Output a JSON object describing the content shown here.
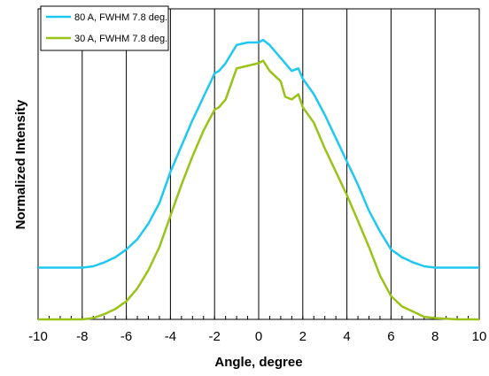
{
  "chart_data": {
    "type": "line",
    "title": "",
    "xlabel": "Angle, degree",
    "ylabel": "Normalized Intensity",
    "xlim": [
      -10,
      10
    ],
    "x_ticks": [
      "-10",
      "-8",
      "-6",
      "-4",
      "-2",
      "0",
      "2",
      "4",
      "6",
      "8",
      "10"
    ],
    "grid": "vertical",
    "legend_position": "top-left",
    "series": [
      {
        "name": "80 A, FWHM 7.8 deg.",
        "color": "#1ec8f0",
        "x": [
          -10,
          -8,
          -7.5,
          -7,
          -6.5,
          -6,
          -5.5,
          -5,
          -4.5,
          -4,
          -3.5,
          -3,
          -2.5,
          -2,
          -1.8,
          -1.5,
          -1,
          -0.5,
          0,
          0.2,
          0.5,
          1,
          1.5,
          1.8,
          2,
          2.5,
          3,
          3.5,
          4,
          4.5,
          5,
          5.5,
          6,
          6.5,
          7,
          7.5,
          8,
          9,
          10
        ],
        "y": [
          0.2,
          0.2,
          0.205,
          0.22,
          0.24,
          0.27,
          0.31,
          0.37,
          0.45,
          0.57,
          0.67,
          0.77,
          0.86,
          0.95,
          0.96,
          0.99,
          1.06,
          1.07,
          1.07,
          1.08,
          1.06,
          1.01,
          0.96,
          0.97,
          0.93,
          0.87,
          0.79,
          0.7,
          0.61,
          0.52,
          0.42,
          0.34,
          0.27,
          0.24,
          0.22,
          0.205,
          0.2,
          0.2,
          0.2
        ]
      },
      {
        "name": "30 A, FWHM 7.8 deg.",
        "color": "#99c318",
        "x": [
          -10,
          -8,
          -7.5,
          -7,
          -6.5,
          -6,
          -5.5,
          -5,
          -4.5,
          -4,
          -3.5,
          -3,
          -2.5,
          -2,
          -1.8,
          -1.5,
          -1,
          -0.5,
          0,
          0.2,
          0.5,
          1,
          1.2,
          1.5,
          1.8,
          2,
          2.5,
          3,
          3.5,
          4,
          4.5,
          5,
          5.5,
          6,
          6.5,
          7,
          7.5,
          8,
          9,
          10
        ],
        "y": [
          0.0,
          0.0,
          0.005,
          0.02,
          0.04,
          0.07,
          0.12,
          0.19,
          0.28,
          0.4,
          0.52,
          0.63,
          0.73,
          0.81,
          0.82,
          0.85,
          0.97,
          0.98,
          0.99,
          1.0,
          0.96,
          0.92,
          0.86,
          0.85,
          0.87,
          0.82,
          0.76,
          0.66,
          0.57,
          0.48,
          0.38,
          0.28,
          0.17,
          0.09,
          0.05,
          0.03,
          0.01,
          0.005,
          0.0,
          0.0
        ]
      }
    ]
  }
}
